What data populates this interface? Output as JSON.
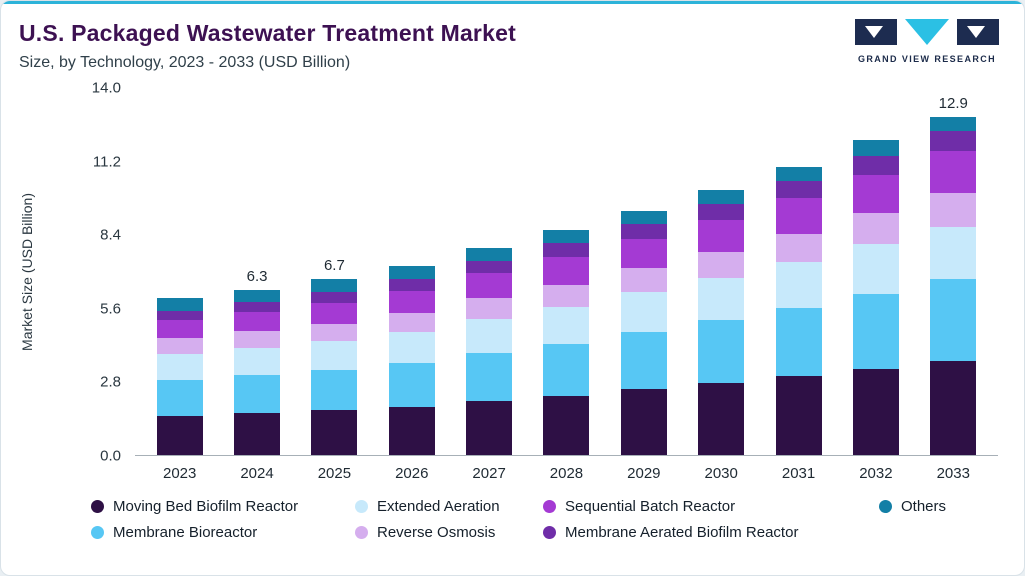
{
  "header": {
    "title": "U.S. Packaged Wastewater Treatment Market",
    "subtitle": "Size, by Technology, 2023 - 2033 (USD Billion)",
    "brand": "GRAND VIEW RESEARCH"
  },
  "chart_data": {
    "type": "bar",
    "stacked": true,
    "title": "U.S. Packaged Wastewater Treatment Market Size, by Technology, 2023 - 2033 (USD Billion)",
    "ylabel": "Market Size (USD Billion)",
    "xlabel": "",
    "ylim": [
      0,
      14
    ],
    "grid": false,
    "legend_position": "bottom",
    "yticks": [
      {
        "label": "0.0",
        "value": 0.0
      },
      {
        "label": "2.8",
        "value": 2.8
      },
      {
        "label": "5.6",
        "value": 5.6
      },
      {
        "label": "8.4",
        "value": 8.4
      },
      {
        "label": "11.2",
        "value": 11.2
      },
      {
        "label": "14.0",
        "value": 14.0
      }
    ],
    "categories": [
      "2023",
      "2024",
      "2025",
      "2026",
      "2027",
      "2028",
      "2029",
      "2030",
      "2031",
      "2032",
      "2033"
    ],
    "series": [
      {
        "name": "Moving Bed Biofilm Reactor",
        "color": "#2e1045",
        "values": [
          1.5,
          1.6,
          1.7,
          1.85,
          2.05,
          2.25,
          2.5,
          2.75,
          3.0,
          3.3,
          3.6
        ]
      },
      {
        "name": "Membrane Bioreactor",
        "color": "#57c7f4",
        "values": [
          1.35,
          1.45,
          1.55,
          1.65,
          1.85,
          2.0,
          2.2,
          2.4,
          2.6,
          2.85,
          3.1
        ]
      },
      {
        "name": "Extended Aeration",
        "color": "#c7e9fb",
        "values": [
          1.0,
          1.05,
          1.1,
          1.2,
          1.3,
          1.4,
          1.5,
          1.6,
          1.75,
          1.9,
          2.0
        ]
      },
      {
        "name": "Reverse Osmosis",
        "color": "#d5aeee",
        "values": [
          0.6,
          0.62,
          0.66,
          0.7,
          0.78,
          0.85,
          0.92,
          1.0,
          1.1,
          1.2,
          1.3
        ]
      },
      {
        "name": "Sequential Batch Reactor",
        "color": "#a43ad3",
        "values": [
          0.7,
          0.75,
          0.8,
          0.87,
          0.95,
          1.05,
          1.12,
          1.22,
          1.35,
          1.45,
          1.6
        ]
      },
      {
        "name": "Membrane Aerated Biofilm Reactor",
        "color": "#6f2da8",
        "values": [
          0.35,
          0.37,
          0.4,
          0.43,
          0.47,
          0.52,
          0.56,
          0.6,
          0.65,
          0.7,
          0.75
        ]
      },
      {
        "name": "Others",
        "color": "#137fa6",
        "values": [
          0.5,
          0.46,
          0.49,
          0.5,
          0.5,
          0.53,
          0.5,
          0.53,
          0.55,
          0.6,
          0.55
        ]
      }
    ],
    "totals": [
      6.0,
      6.3,
      6.7,
      7.2,
      7.9,
      8.6,
      9.3,
      10.1,
      11.0,
      12.0,
      12.9
    ],
    "value_labels": {
      "2024": "6.3",
      "2025": "6.7",
      "2033": "12.9"
    },
    "legend": [
      {
        "label": "Moving Bed Biofilm Reactor",
        "color": "#2e1045"
      },
      {
        "label": "Extended Aeration",
        "color": "#c7e9fb"
      },
      {
        "label": "Sequential Batch Reactor",
        "color": "#a43ad3"
      },
      {
        "label": "Others",
        "color": "#137fa6"
      },
      {
        "label": "Membrane Bioreactor",
        "color": "#57c7f4"
      },
      {
        "label": "Reverse Osmosis",
        "color": "#d5aeee"
      },
      {
        "label": "Membrane Aerated Biofilm Reactor",
        "color": "#6f2da8"
      }
    ]
  }
}
